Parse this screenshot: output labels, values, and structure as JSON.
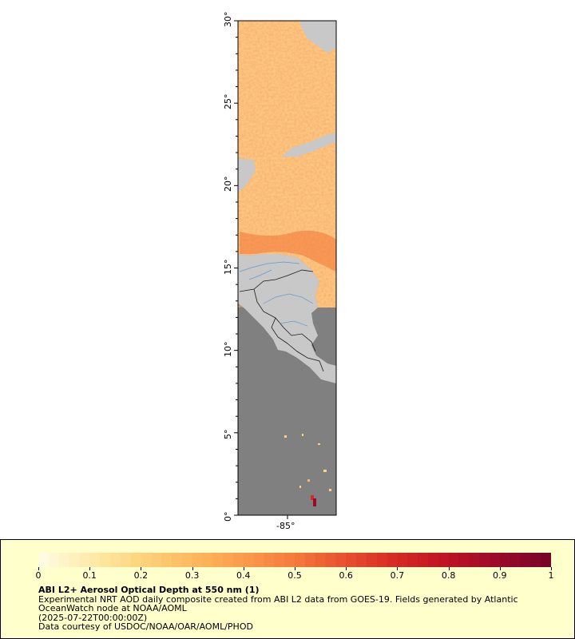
{
  "map": {
    "lat_ticks": [
      "0°",
      "5°",
      "10°",
      "15°",
      "20°",
      "25°",
      "30°"
    ],
    "lon_ticks": [
      "-85°"
    ],
    "lat_range": [
      0,
      30
    ],
    "colors": {
      "land": "#c8c8c8",
      "nodata_ocean": "#808080",
      "borders": "#1a1a1a",
      "rivers": "#6699cc"
    }
  },
  "legend": {
    "title": "ABI L2+ Aerosol Optical Depth at 550 nm (1)",
    "description": "Experimental NRT AOD daily composite created from ABI L2 data from GOES-19. Fields generated by Atlantic OceanWatch node at NOAA/AOML",
    "date": "(2025-07-22T00:00:00Z)",
    "credit": "Data courtesy of USDOC/NOAA/OAR/AOML/PHOD",
    "background_color": "#ffffcc",
    "colorbar_ticks": [
      "0",
      "0.1",
      "0.2",
      "0.3",
      "0.4",
      "0.5",
      "0.6",
      "0.7",
      "0.8",
      "0.9",
      "1"
    ],
    "colorbar_range": [
      0,
      1
    ],
    "colorbar_stops": [
      "#fffbe0",
      "#ffe9a8",
      "#fdd27a",
      "#fdb75e",
      "#fb9b4a",
      "#f47a3b",
      "#e8502e",
      "#d62a24",
      "#be1424",
      "#9c0a2a",
      "#7a0428"
    ]
  }
}
